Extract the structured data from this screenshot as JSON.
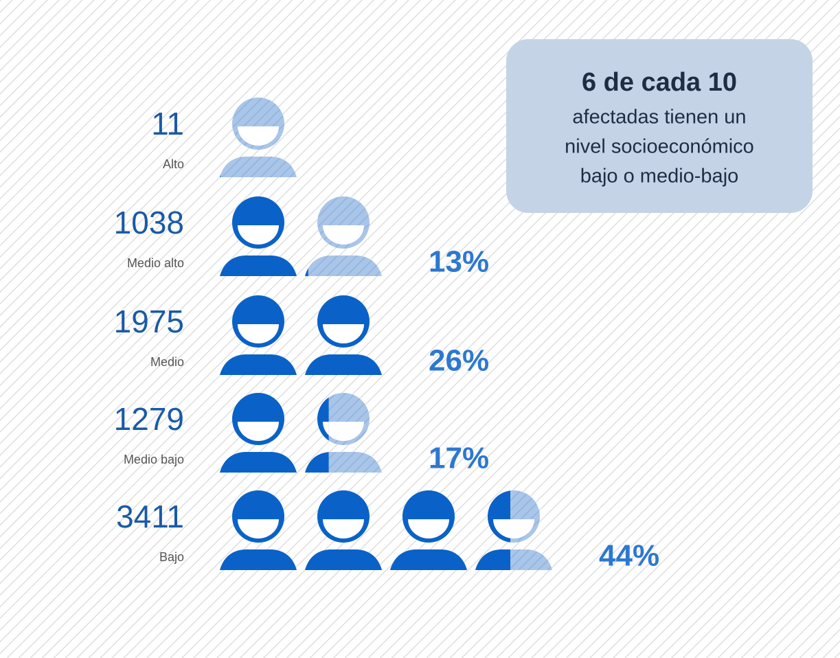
{
  "chart_data": {
    "type": "pictogram",
    "categories": [
      "Alto",
      "Medio alto",
      "Medio",
      "Medio bajo",
      "Bajo"
    ],
    "values": [
      11,
      1038,
      1975,
      1279,
      3411
    ],
    "shares": {
      "values": [
        null,
        13,
        26,
        17,
        44
      ],
      "value_labels": [
        null,
        "13%",
        "26%",
        "17%",
        "44%"
      ]
    },
    "xlim": [
      0,
      4000
    ],
    "color": "#0a62c8",
    "annotation": {
      "title": "6 de cada 10",
      "lines": [
        "afectadas tienen un",
        "nivel socioeconómico",
        "bajo o medio-bajo"
      ]
    }
  }
}
